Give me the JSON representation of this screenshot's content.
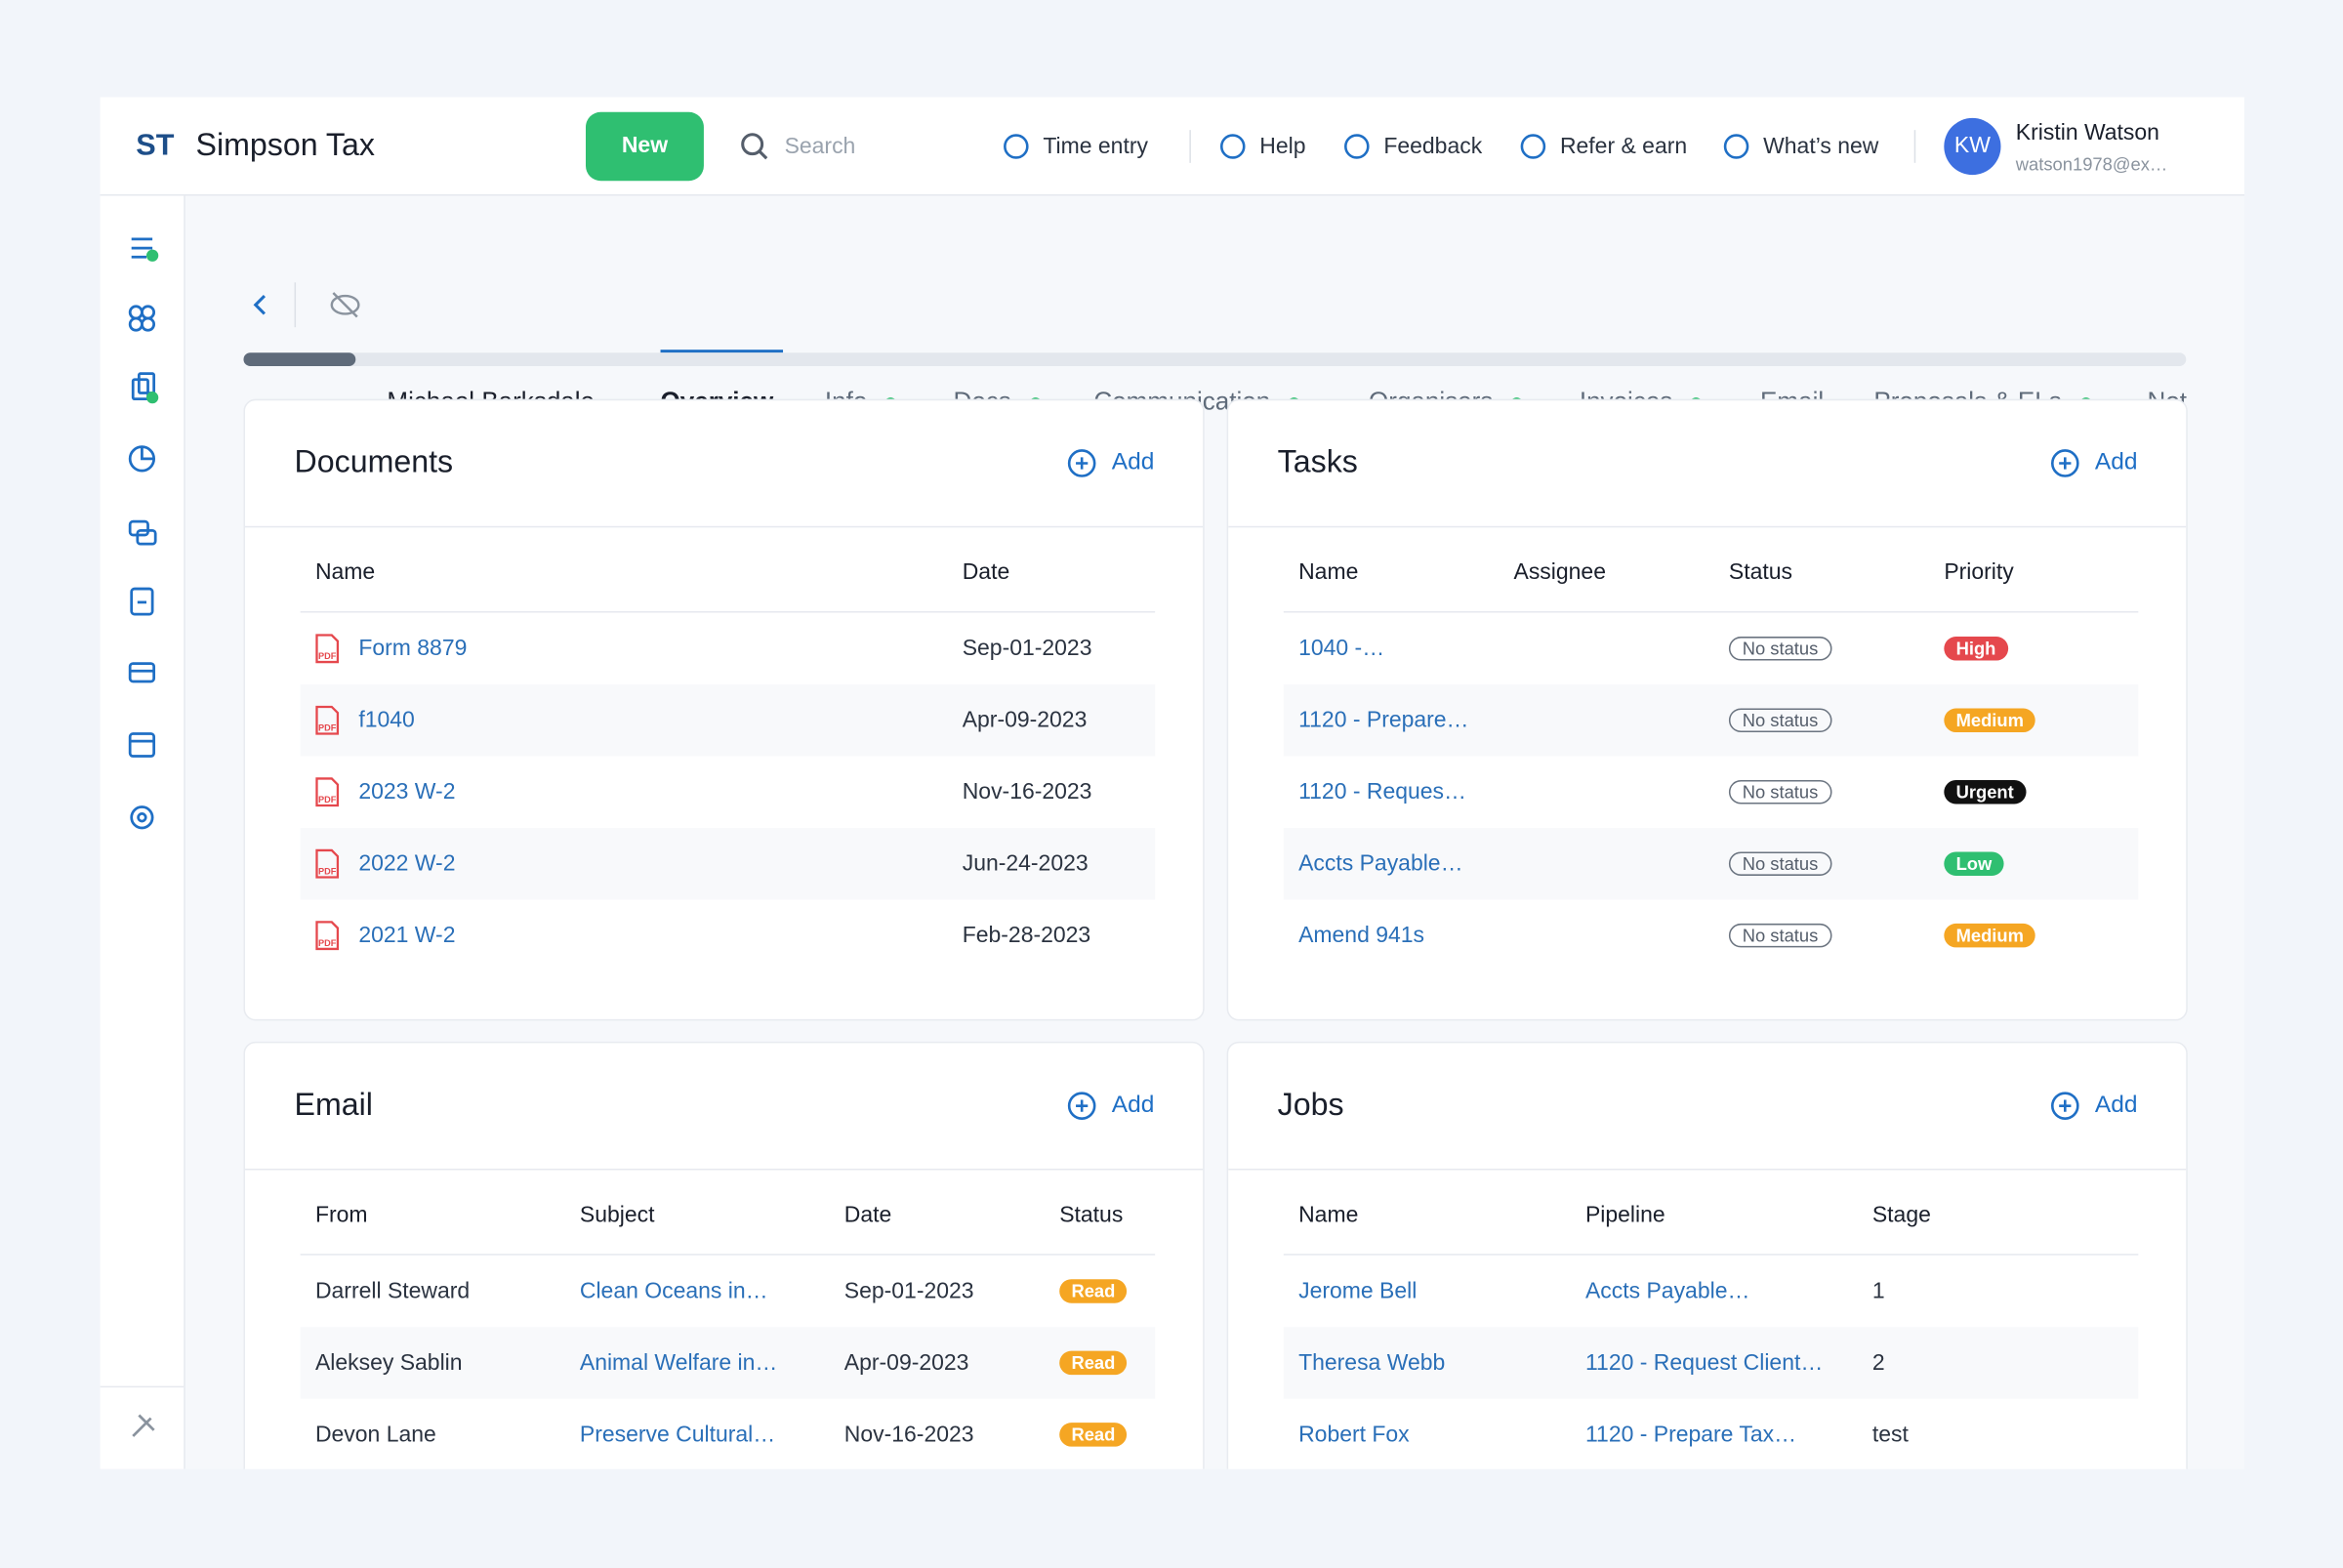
{
  "header": {
    "logo": "ST",
    "company": "Simpson Tax",
    "new_button": "New",
    "search": "Search",
    "nav": [
      {
        "label": "Time entry"
      },
      {
        "label": "Help"
      },
      {
        "label": "Feedback"
      },
      {
        "label": "Refer & earn"
      },
      {
        "label": "What’s new"
      }
    ],
    "user": {
      "initials": "KW",
      "name": "Kristin Watson",
      "email": "watson1978@ex…"
    }
  },
  "tabs": {
    "client": "Michael Barksdale",
    "items": [
      {
        "label": "Overview",
        "active": true,
        "dot": false
      },
      {
        "label": "Info",
        "active": false,
        "dot": true
      },
      {
        "label": "Docs",
        "active": false,
        "dot": true
      },
      {
        "label": "Communication",
        "active": false,
        "dot": true
      },
      {
        "label": "Organisers",
        "active": false,
        "dot": true
      },
      {
        "label": "Invoices",
        "active": false,
        "dot": true
      },
      {
        "label": "Email",
        "active": false,
        "dot": false
      },
      {
        "label": "Proposals & ELs",
        "active": false,
        "dot": true
      },
      {
        "label": "Not",
        "active": false,
        "dot": false
      }
    ]
  },
  "panels": {
    "documents": {
      "title": "Documents",
      "add": "Add",
      "columns": [
        "Name",
        "Date"
      ],
      "rows": [
        {
          "name": "Form 8879",
          "date": "Sep-01-2023"
        },
        {
          "name": "f1040",
          "date": "Apr-09-2023"
        },
        {
          "name": "2023 W-2",
          "date": "Nov-16-2023"
        },
        {
          "name": "2022 W-2",
          "date": "Jun-24-2023"
        },
        {
          "name": "2021 W-2",
          "date": "Feb-28-2023"
        }
      ]
    },
    "tasks": {
      "title": "Tasks",
      "add": "Add",
      "columns": [
        "Name",
        "Assignee",
        "Status",
        "Priority"
      ],
      "rows": [
        {
          "name": "1040 -…",
          "status": "No status",
          "priority": "High",
          "priority_color": "#e5484d"
        },
        {
          "name": "1120 - Prepare…",
          "status": "No status",
          "priority": "Medium",
          "priority_color": "#f5a623"
        },
        {
          "name": "1120 - Reques…",
          "status": "No status",
          "priority": "Urgent",
          "priority_color": "#111111"
        },
        {
          "name": "Accts Payable…",
          "status": "No status",
          "priority": "Low",
          "priority_color": "#2fbf71"
        },
        {
          "name": "Amend 941s",
          "status": "No status",
          "priority": "Medium",
          "priority_color": "#f5a623"
        }
      ]
    },
    "email": {
      "title": "Email",
      "add": "Add",
      "columns": [
        "From",
        "Subject",
        "Date",
        "Status"
      ],
      "rows": [
        {
          "from": "Darrell Steward",
          "subject": "Clean Oceans in…",
          "date": "Sep-01-2023",
          "status": "Read"
        },
        {
          "from": "Aleksey Sablin",
          "subject": "Animal Welfare in…",
          "date": "Apr-09-2023",
          "status": "Read"
        },
        {
          "from": "Devon Lane",
          "subject": "Preserve Cultural…",
          "date": "Nov-16-2023",
          "status": "Read"
        }
      ]
    },
    "jobs": {
      "title": "Jobs",
      "add": "Add",
      "columns": [
        "Name",
        "Pipeline",
        "Stage"
      ],
      "rows": [
        {
          "name": "Jerome Bell",
          "pipeline": "Accts Payable…",
          "stage": 1
        },
        {
          "name": "Theresa Webb",
          "pipeline": "1120 - Request Client…",
          "stage": 2
        },
        {
          "name": "Robert Fox",
          "pipeline": "1120 - Prepare Tax…",
          "stage": "test"
        }
      ]
    }
  }
}
